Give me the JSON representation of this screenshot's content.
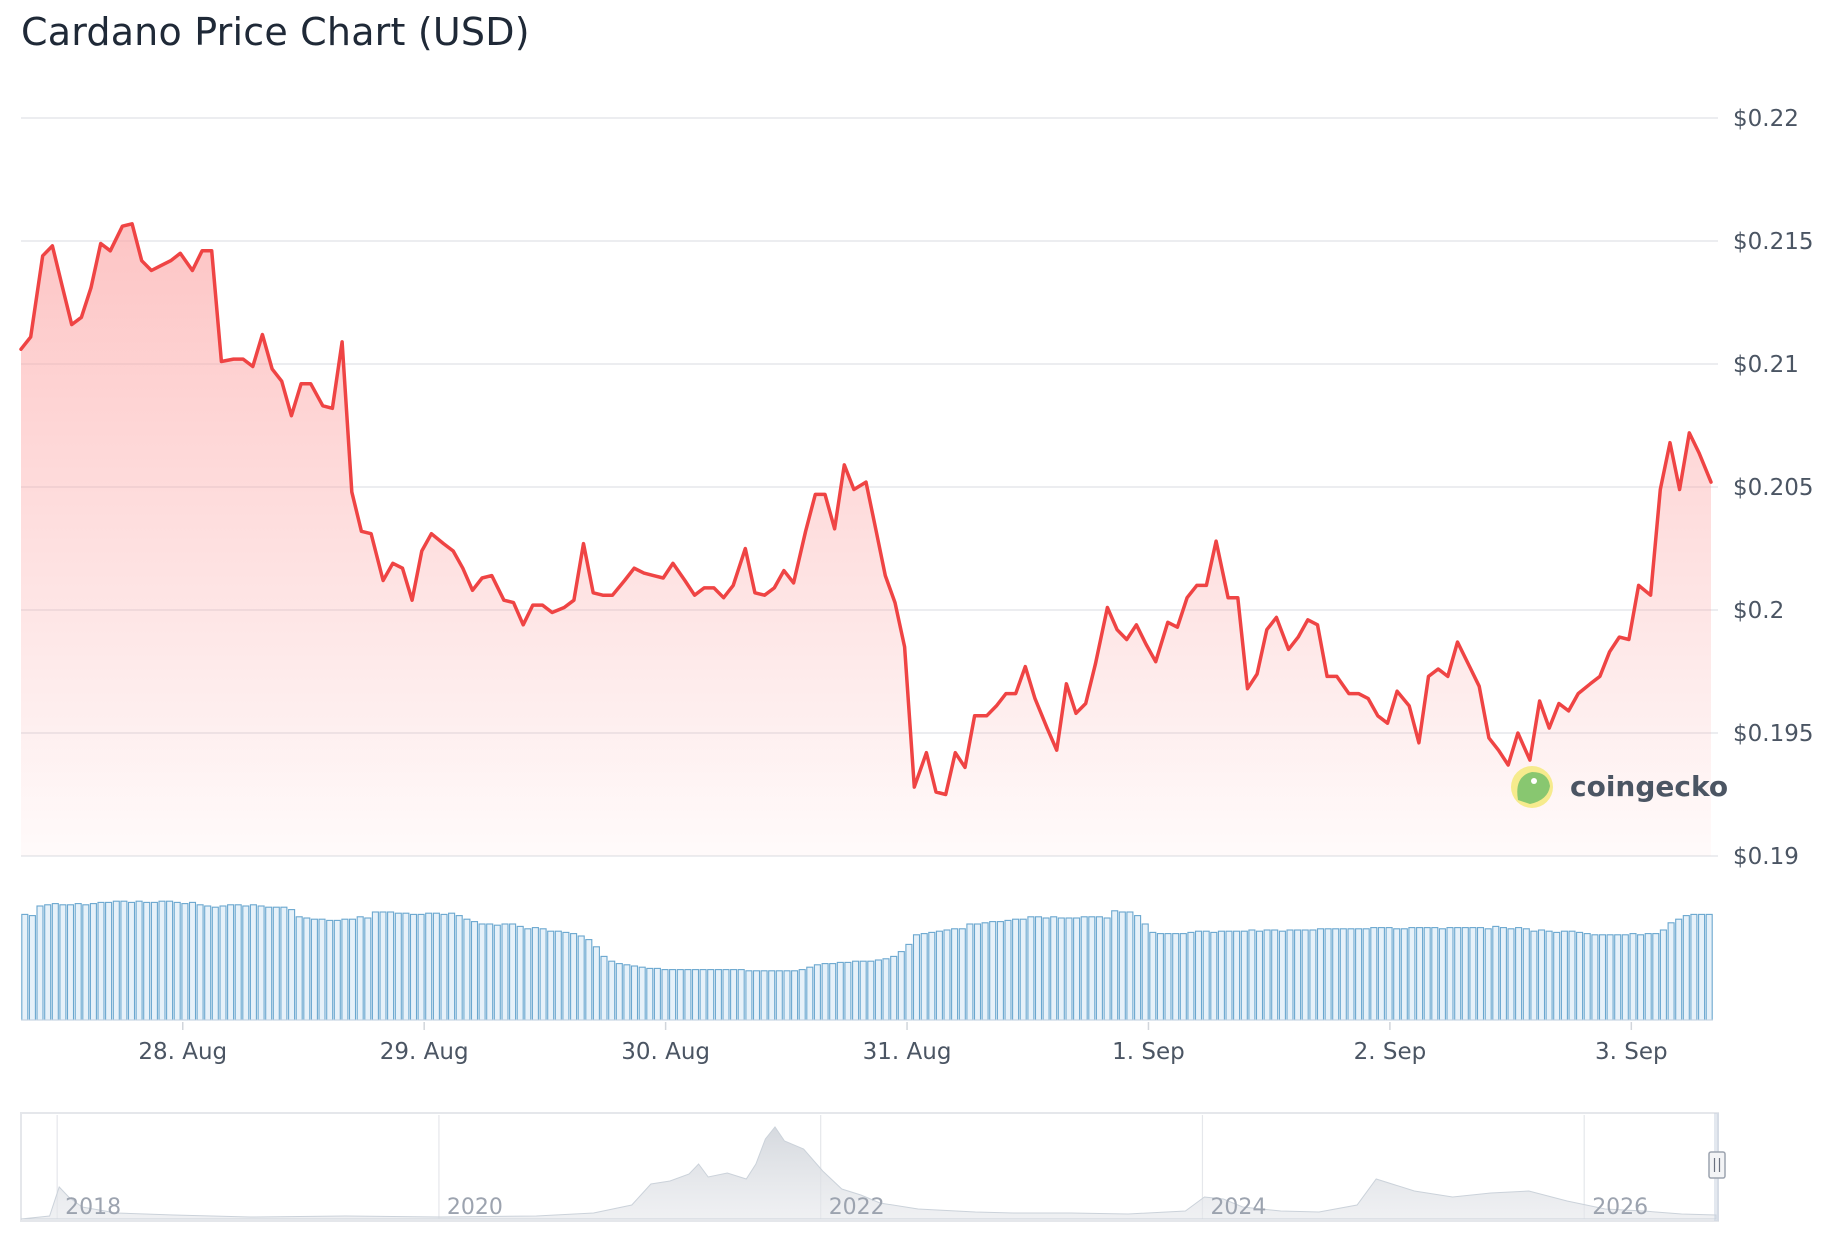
{
  "page": {
    "title": "Cardano Price Chart (USD)"
  },
  "watermark": {
    "text": "coingecko"
  },
  "colors": {
    "price_line": "#ef4444",
    "price_fill": "#fca5a5",
    "volume_bar_stroke": "#6aa7cf",
    "volume_bar_fill": "#e6f1f9",
    "grid": "#e5e7eb",
    "navigator_area": "#d8dde3"
  },
  "chart_data": {
    "type": "line",
    "title": "Cardano Price Chart (USD)",
    "x_axis": {
      "ticks": [
        "28. Aug",
        "29. Aug",
        "30. Aug",
        "31. Aug",
        "1. Sep",
        "2. Sep",
        "3. Sep"
      ],
      "tick_positions_days": [
        0.67,
        1.67,
        2.67,
        3.67,
        4.67,
        5.67,
        6.67
      ],
      "range_days": [
        0,
        7
      ]
    },
    "y_axis": {
      "ticks": [
        "$0.19",
        "$0.195",
        "$0.2",
        "$0.205",
        "$0.21",
        "$0.215",
        "$0.22"
      ],
      "tick_values": [
        0.19,
        0.195,
        0.2,
        0.205,
        0.21,
        0.215,
        0.22
      ],
      "ylim": [
        0.19,
        0.22
      ],
      "position": "right"
    },
    "grid": true,
    "price_series": [
      [
        0.0,
        0.2106
      ],
      [
        0.04,
        0.2111
      ],
      [
        0.09,
        0.2144
      ],
      [
        0.13,
        0.2148
      ],
      [
        0.17,
        0.2132
      ],
      [
        0.21,
        0.2116
      ],
      [
        0.25,
        0.2119
      ],
      [
        0.29,
        0.2131
      ],
      [
        0.33,
        0.2149
      ],
      [
        0.37,
        0.2146
      ],
      [
        0.42,
        0.2156
      ],
      [
        0.46,
        0.2157
      ],
      [
        0.5,
        0.2142
      ],
      [
        0.54,
        0.2138
      ],
      [
        0.58,
        0.214
      ],
      [
        0.62,
        0.2142
      ],
      [
        0.66,
        0.2145
      ],
      [
        0.71,
        0.2138
      ],
      [
        0.75,
        0.2146
      ],
      [
        0.79,
        0.2146
      ],
      [
        0.83,
        0.2101
      ],
      [
        0.88,
        0.2102
      ],
      [
        0.92,
        0.2102
      ],
      [
        0.96,
        0.2099
      ],
      [
        1.0,
        0.2112
      ],
      [
        1.04,
        0.2098
      ],
      [
        1.08,
        0.2093
      ],
      [
        1.12,
        0.2079
      ],
      [
        1.16,
        0.2092
      ],
      [
        1.2,
        0.2092
      ],
      [
        1.25,
        0.2083
      ],
      [
        1.29,
        0.2082
      ],
      [
        1.33,
        0.2109
      ],
      [
        1.37,
        0.2048
      ],
      [
        1.41,
        0.2032
      ],
      [
        1.45,
        0.2031
      ],
      [
        1.5,
        0.2012
      ],
      [
        1.54,
        0.2019
      ],
      [
        1.58,
        0.2017
      ],
      [
        1.62,
        0.2004
      ],
      [
        1.66,
        0.2024
      ],
      [
        1.7,
        0.2031
      ],
      [
        1.75,
        0.2027
      ],
      [
        1.79,
        0.2024
      ],
      [
        1.83,
        0.2017
      ],
      [
        1.87,
        0.2008
      ],
      [
        1.91,
        0.2013
      ],
      [
        1.95,
        0.2014
      ],
      [
        2.0,
        0.2004
      ],
      [
        2.04,
        0.2003
      ],
      [
        2.08,
        0.1994
      ],
      [
        2.12,
        0.2002
      ],
      [
        2.16,
        0.2002
      ],
      [
        2.2,
        0.1999
      ],
      [
        2.25,
        0.2001
      ],
      [
        2.29,
        0.2004
      ],
      [
        2.33,
        0.2027
      ],
      [
        2.37,
        0.2007
      ],
      [
        2.41,
        0.2006
      ],
      [
        2.45,
        0.2006
      ],
      [
        2.5,
        0.2012
      ],
      [
        2.54,
        0.2017
      ],
      [
        2.58,
        0.2015
      ],
      [
        2.62,
        0.2014
      ],
      [
        2.66,
        0.2013
      ],
      [
        2.7,
        0.2019
      ],
      [
        2.75,
        0.2012
      ],
      [
        2.79,
        0.2006
      ],
      [
        2.83,
        0.2009
      ],
      [
        2.87,
        0.2009
      ],
      [
        2.91,
        0.2005
      ],
      [
        2.95,
        0.201
      ],
      [
        3.0,
        0.2025
      ],
      [
        3.04,
        0.2007
      ],
      [
        3.08,
        0.2006
      ],
      [
        3.12,
        0.2009
      ],
      [
        3.16,
        0.2016
      ],
      [
        3.2,
        0.2011
      ],
      [
        3.25,
        0.2032
      ],
      [
        3.29,
        0.2047
      ],
      [
        3.33,
        0.2047
      ],
      [
        3.37,
        0.2033
      ],
      [
        3.41,
        0.2059
      ],
      [
        3.45,
        0.2049
      ],
      [
        3.5,
        0.2052
      ],
      [
        3.54,
        0.2033
      ],
      [
        3.58,
        0.2014
      ],
      [
        3.62,
        0.2003
      ],
      [
        3.66,
        0.1985
      ],
      [
        3.7,
        0.1928
      ],
      [
        3.75,
        0.1942
      ],
      [
        3.79,
        0.1926
      ],
      [
        3.83,
        0.1925
      ],
      [
        3.87,
        0.1942
      ],
      [
        3.91,
        0.1936
      ],
      [
        3.95,
        0.1957
      ],
      [
        4.0,
        0.1957
      ],
      [
        4.04,
        0.1961
      ],
      [
        4.08,
        0.1966
      ],
      [
        4.12,
        0.1966
      ],
      [
        4.16,
        0.1977
      ],
      [
        4.2,
        0.1964
      ],
      [
        4.25,
        0.1952
      ],
      [
        4.29,
        0.1943
      ],
      [
        4.33,
        0.197
      ],
      [
        4.37,
        0.1958
      ],
      [
        4.41,
        0.1962
      ],
      [
        4.45,
        0.1978
      ],
      [
        4.5,
        0.2001
      ],
      [
        4.54,
        0.1992
      ],
      [
        4.58,
        0.1988
      ],
      [
        4.62,
        0.1994
      ],
      [
        4.66,
        0.1986
      ],
      [
        4.7,
        0.1979
      ],
      [
        4.75,
        0.1995
      ],
      [
        4.79,
        0.1993
      ],
      [
        4.83,
        0.2005
      ],
      [
        4.87,
        0.201
      ],
      [
        4.91,
        0.201
      ],
      [
        4.95,
        0.2028
      ],
      [
        5.0,
        0.2005
      ],
      [
        5.04,
        0.2005
      ],
      [
        5.08,
        0.1968
      ],
      [
        5.12,
        0.1974
      ],
      [
        5.16,
        0.1992
      ],
      [
        5.2,
        0.1997
      ],
      [
        5.25,
        0.1984
      ],
      [
        5.29,
        0.1989
      ],
      [
        5.33,
        0.1996
      ],
      [
        5.37,
        0.1994
      ],
      [
        5.41,
        0.1973
      ],
      [
        5.45,
        0.1973
      ],
      [
        5.5,
        0.1966
      ],
      [
        5.54,
        0.1966
      ],
      [
        5.58,
        0.1964
      ],
      [
        5.62,
        0.1957
      ],
      [
        5.66,
        0.1954
      ],
      [
        5.7,
        0.1967
      ],
      [
        5.75,
        0.1961
      ],
      [
        5.79,
        0.1946
      ],
      [
        5.83,
        0.1973
      ],
      [
        5.87,
        0.1976
      ],
      [
        5.91,
        0.1973
      ],
      [
        5.95,
        0.1987
      ],
      [
        6.0,
        0.1977
      ],
      [
        6.04,
        0.1969
      ],
      [
        6.08,
        0.1948
      ],
      [
        6.12,
        0.1943
      ],
      [
        6.16,
        0.1937
      ],
      [
        6.2,
        0.195
      ],
      [
        6.25,
        0.1939
      ],
      [
        6.29,
        0.1963
      ],
      [
        6.33,
        0.1952
      ],
      [
        6.37,
        0.1962
      ],
      [
        6.41,
        0.1959
      ],
      [
        6.45,
        0.1966
      ],
      [
        6.5,
        0.197
      ],
      [
        6.54,
        0.1973
      ],
      [
        6.58,
        0.1983
      ],
      [
        6.62,
        0.1989
      ],
      [
        6.66,
        0.1988
      ],
      [
        6.7,
        0.201
      ],
      [
        6.75,
        0.2006
      ],
      [
        6.79,
        0.2049
      ],
      [
        6.83,
        0.2068
      ],
      [
        6.87,
        0.2049
      ],
      [
        6.91,
        0.2072
      ],
      [
        6.95,
        0.2064
      ],
      [
        7.0,
        0.2052
      ]
    ],
    "volume_series": {
      "relative_values": [
        0.88,
        0.87,
        0.95,
        0.96,
        0.97,
        0.96,
        0.96,
        0.97,
        0.96,
        0.97,
        0.98,
        0.98,
        0.99,
        0.99,
        0.98,
        0.99,
        0.98,
        0.98,
        0.99,
        0.99,
        0.98,
        0.97,
        0.98,
        0.96,
        0.95,
        0.94,
        0.95,
        0.96,
        0.96,
        0.95,
        0.96,
        0.95,
        0.94,
        0.94,
        0.94,
        0.92,
        0.86,
        0.85,
        0.84,
        0.84,
        0.83,
        0.83,
        0.84,
        0.84,
        0.86,
        0.85,
        0.9,
        0.9,
        0.9,
        0.89,
        0.89,
        0.88,
        0.88,
        0.89,
        0.89,
        0.88,
        0.89,
        0.87,
        0.84,
        0.82,
        0.8,
        0.8,
        0.79,
        0.8,
        0.8,
        0.78,
        0.76,
        0.77,
        0.76,
        0.74,
        0.74,
        0.73,
        0.72,
        0.7,
        0.67,
        0.61,
        0.53,
        0.49,
        0.47,
        0.46,
        0.45,
        0.44,
        0.43,
        0.43,
        0.42,
        0.42,
        0.42,
        0.42,
        0.42,
        0.42,
        0.42,
        0.42,
        0.42,
        0.42,
        0.42,
        0.41,
        0.41,
        0.41,
        0.41,
        0.41,
        0.41,
        0.41,
        0.42,
        0.44,
        0.46,
        0.47,
        0.47,
        0.48,
        0.48,
        0.49,
        0.49,
        0.49,
        0.5,
        0.51,
        0.53,
        0.57,
        0.63,
        0.71,
        0.72,
        0.73,
        0.74,
        0.75,
        0.76,
        0.76,
        0.8,
        0.8,
        0.81,
        0.82,
        0.82,
        0.83,
        0.84,
        0.84,
        0.86,
        0.86,
        0.85,
        0.86,
        0.85,
        0.85,
        0.85,
        0.86,
        0.86,
        0.86,
        0.85,
        0.91,
        0.9,
        0.9,
        0.87,
        0.8,
        0.73,
        0.72,
        0.72,
        0.72,
        0.72,
        0.73,
        0.74,
        0.74,
        0.73,
        0.74,
        0.74,
        0.74,
        0.74,
        0.75,
        0.74,
        0.75,
        0.75,
        0.74,
        0.75,
        0.75,
        0.75,
        0.75,
        0.76,
        0.76,
        0.76,
        0.76,
        0.76,
        0.76,
        0.76,
        0.77,
        0.77,
        0.77,
        0.76,
        0.76,
        0.77,
        0.77,
        0.77,
        0.77,
        0.76,
        0.77,
        0.77,
        0.77,
        0.77,
        0.77,
        0.76,
        0.78,
        0.77,
        0.76,
        0.77,
        0.76,
        0.74,
        0.75,
        0.74,
        0.73,
        0.74,
        0.74,
        0.73,
        0.72,
        0.71,
        0.71,
        0.71,
        0.71,
        0.71,
        0.72,
        0.71,
        0.72,
        0.72,
        0.75,
        0.81,
        0.84,
        0.87,
        0.88,
        0.88,
        0.88
      ]
    },
    "navigator": {
      "labels": [
        "2018",
        "2020",
        "2022",
        "2024",
        "2026"
      ],
      "label_positions_years": [
        2018,
        2020,
        2022,
        2024,
        2026
      ],
      "range_years": [
        2017.8,
        2026.68
      ],
      "relative_values": [
        [
          2017.8,
          0.0
        ],
        [
          2017.95,
          0.03
        ],
        [
          2018.0,
          0.32
        ],
        [
          2018.05,
          0.22
        ],
        [
          2018.12,
          0.12
        ],
        [
          2018.3,
          0.06
        ],
        [
          2018.6,
          0.04
        ],
        [
          2019.0,
          0.02
        ],
        [
          2019.5,
          0.03
        ],
        [
          2020.0,
          0.02
        ],
        [
          2020.5,
          0.03
        ],
        [
          2020.8,
          0.06
        ],
        [
          2021.0,
          0.14
        ],
        [
          2021.1,
          0.35
        ],
        [
          2021.2,
          0.38
        ],
        [
          2021.3,
          0.45
        ],
        [
          2021.35,
          0.55
        ],
        [
          2021.4,
          0.42
        ],
        [
          2021.5,
          0.46
        ],
        [
          2021.6,
          0.4
        ],
        [
          2021.65,
          0.55
        ],
        [
          2021.7,
          0.8
        ],
        [
          2021.75,
          0.92
        ],
        [
          2021.8,
          0.78
        ],
        [
          2021.9,
          0.7
        ],
        [
          2022.0,
          0.48
        ],
        [
          2022.1,
          0.3
        ],
        [
          2022.2,
          0.24
        ],
        [
          2022.3,
          0.16
        ],
        [
          2022.5,
          0.1
        ],
        [
          2022.8,
          0.07
        ],
        [
          2023.0,
          0.06
        ],
        [
          2023.3,
          0.06
        ],
        [
          2023.6,
          0.05
        ],
        [
          2023.9,
          0.08
        ],
        [
          2024.0,
          0.22
        ],
        [
          2024.1,
          0.2
        ],
        [
          2024.2,
          0.12
        ],
        [
          2024.4,
          0.08
        ],
        [
          2024.6,
          0.07
        ],
        [
          2024.8,
          0.14
        ],
        [
          2024.9,
          0.4
        ],
        [
          2025.0,
          0.34
        ],
        [
          2025.1,
          0.28
        ],
        [
          2025.3,
          0.22
        ],
        [
          2025.5,
          0.26
        ],
        [
          2025.7,
          0.28
        ],
        [
          2025.9,
          0.18
        ],
        [
          2026.1,
          0.1
        ],
        [
          2026.3,
          0.08
        ],
        [
          2026.5,
          0.05
        ],
        [
          2026.68,
          0.04
        ]
      ]
    }
  }
}
